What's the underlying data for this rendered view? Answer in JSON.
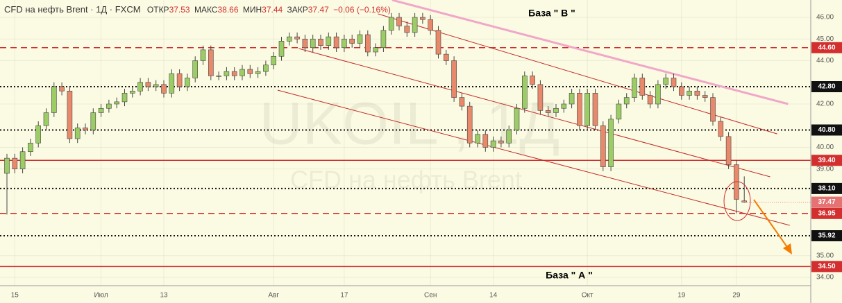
{
  "chart_data": {
    "type": "candlestick",
    "title": "CFD на нефть Brent · 1Д · FXCM",
    "header_labels": {
      "open": "ОТКР",
      "high": "МАКС",
      "low": "МИН",
      "close": "ЗАКР"
    },
    "change": "−0.06 (−0.16%)",
    "watermark": [
      "UKOIL , 1Д",
      "CFD на нефть Brent"
    ],
    "annotations": [
      "База  \" В \"",
      "База  \" А \""
    ],
    "up_color": "#9ccc65",
    "down_color": "#e8896b",
    "grid": true,
    "categories": [
      null,
      "15",
      null,
      null,
      null,
      null,
      null,
      null,
      null,
      null,
      null,
      null,
      "Июл",
      null,
      null,
      null,
      null,
      null,
      null,
      null,
      "13",
      null,
      null,
      null,
      null,
      null,
      null,
      null,
      null,
      null,
      null,
      null,
      null,
      null,
      "Авг",
      null,
      null,
      null,
      null,
      null,
      null,
      null,
      null,
      "17",
      null,
      null,
      null,
      null,
      null,
      null,
      null,
      null,
      null,
      null,
      "Сен",
      null,
      null,
      null,
      null,
      null,
      null,
      null,
      "14",
      null,
      null,
      null,
      null,
      null,
      null,
      null,
      null,
      null,
      null,
      null,
      "Окт",
      null,
      null,
      null,
      null,
      null,
      null,
      null,
      null,
      null,
      null,
      null,
      "19",
      null,
      null,
      null,
      null,
      null,
      null,
      "29",
      null
    ],
    "open": [
      38.8,
      39.5,
      39.0,
      39.8,
      40.2,
      41.0,
      41.6,
      42.8,
      42.6,
      40.4,
      40.9,
      40.8,
      41.6,
      41.8,
      42.0,
      42.1,
      42.5,
      42.6,
      43.0,
      42.8,
      42.9,
      42.5,
      43.4,
      42.8,
      43.2,
      44.0,
      44.5,
      43.3,
      43.3,
      43.5,
      43.3,
      43.6,
      43.4,
      43.5,
      43.8,
      44.2,
      44.9,
      45.1,
      45.0,
      44.6,
      45.0,
      44.7,
      45.1,
      44.6,
      45.0,
      44.8,
      45.2,
      44.4,
      44.6,
      45.4,
      46.0,
      45.6,
      45.3,
      46.0,
      45.9,
      45.4,
      44.3,
      44.0,
      42.3,
      41.9,
      40.2,
      40.6,
      40.0,
      40.3,
      40.2,
      40.8,
      41.8,
      43.3,
      42.9,
      41.7,
      41.6,
      41.8,
      42.0,
      42.5,
      41.0,
      42.5,
      41.0,
      39.1,
      41.3,
      42.0,
      42.3,
      43.2,
      42.4,
      42.0,
      42.9,
      43.2,
      42.8,
      42.4,
      42.6,
      42.4,
      42.3,
      41.2,
      40.5,
      39.2,
      37.53
    ],
    "high": [
      39.7,
      39.7,
      40.0,
      40.4,
      41.2,
      41.8,
      43.0,
      43.0,
      42.8,
      41.1,
      41.1,
      41.8,
      42.0,
      42.2,
      42.3,
      42.7,
      42.8,
      43.2,
      43.2,
      43.1,
      43.1,
      43.6,
      43.6,
      43.4,
      44.2,
      44.7,
      44.7,
      43.5,
      43.7,
      43.7,
      43.8,
      43.8,
      43.7,
      44.0,
      44.4,
      45.1,
      45.3,
      45.3,
      45.2,
      45.2,
      45.2,
      45.3,
      45.3,
      45.2,
      45.2,
      45.4,
      45.4,
      44.8,
      45.6,
      46.2,
      46.2,
      45.8,
      46.2,
      46.2,
      46.1,
      45.6,
      44.5,
      44.2,
      42.5,
      42.1,
      40.8,
      40.8,
      40.5,
      40.5,
      41.0,
      42.0,
      43.5,
      43.5,
      43.1,
      41.9,
      42.0,
      42.2,
      42.7,
      42.7,
      42.7,
      42.7,
      41.2,
      41.5,
      42.2,
      42.5,
      43.4,
      43.4,
      42.6,
      43.1,
      43.4,
      43.4,
      43.0,
      42.8,
      42.8,
      42.6,
      42.5,
      41.4,
      40.7,
      39.4,
      38.66
    ],
    "low": [
      36.9,
      38.8,
      38.8,
      39.6,
      40.0,
      40.8,
      41.4,
      42.4,
      40.2,
      40.2,
      40.6,
      40.6,
      41.4,
      41.6,
      41.8,
      41.9,
      42.3,
      42.4,
      42.6,
      42.6,
      42.3,
      42.3,
      42.6,
      42.6,
      43.0,
      43.8,
      43.1,
      43.1,
      43.1,
      43.1,
      43.1,
      43.2,
      43.2,
      43.3,
      43.6,
      44.0,
      44.7,
      44.8,
      44.4,
      44.4,
      44.5,
      44.5,
      44.4,
      44.4,
      44.6,
      44.6,
      44.2,
      44.2,
      44.4,
      45.2,
      45.4,
      45.1,
      45.1,
      45.7,
      45.2,
      44.1,
      43.8,
      42.1,
      41.7,
      40.0,
      40.0,
      39.8,
      39.8,
      40.0,
      40.0,
      40.6,
      41.6,
      42.7,
      41.5,
      41.4,
      41.4,
      41.6,
      41.8,
      40.8,
      40.8,
      40.8,
      38.9,
      38.9,
      41.1,
      41.8,
      42.1,
      42.2,
      41.8,
      41.8,
      42.7,
      42.6,
      42.2,
      42.2,
      42.2,
      42.1,
      41.0,
      40.3,
      39.0,
      36.95,
      37.44
    ],
    "close": [
      39.5,
      39.0,
      39.8,
      40.2,
      41.0,
      41.6,
      42.8,
      42.6,
      40.4,
      40.9,
      40.8,
      41.6,
      41.8,
      42.0,
      42.1,
      42.5,
      42.6,
      43.0,
      42.8,
      42.9,
      42.5,
      43.4,
      42.8,
      43.2,
      44.0,
      44.5,
      43.3,
      43.3,
      43.5,
      43.3,
      43.6,
      43.4,
      43.5,
      43.8,
      44.2,
      44.9,
      45.1,
      45.0,
      44.6,
      45.0,
      44.7,
      45.1,
      44.6,
      45.0,
      44.8,
      45.2,
      44.4,
      44.6,
      45.4,
      46.0,
      45.6,
      45.3,
      46.0,
      45.9,
      45.4,
      44.3,
      44.0,
      42.3,
      41.9,
      40.2,
      40.6,
      40.0,
      40.3,
      40.2,
      40.8,
      41.8,
      43.3,
      42.9,
      41.7,
      41.6,
      41.8,
      42.0,
      42.5,
      41.0,
      42.5,
      41.0,
      39.1,
      41.3,
      42.0,
      42.3,
      43.2,
      42.4,
      42.0,
      42.9,
      43.2,
      42.8,
      42.4,
      42.6,
      42.4,
      42.3,
      41.2,
      40.5,
      39.2,
      37.6,
      37.47
    ],
    "ylim": [
      33.6,
      46.8
    ],
    "yticks": [
      {
        "value": 46,
        "label": "46.00"
      },
      {
        "value": 45,
        "label": "45.00"
      },
      {
        "value": 44,
        "label": "44.00"
      },
      {
        "value": 42,
        "label": "42.00"
      },
      {
        "value": 40,
        "label": "40.00"
      },
      {
        "value": 39,
        "label": "39.00"
      },
      {
        "value": 35,
        "label": "35.00"
      },
      {
        "value": 34,
        "label": "34.00"
      }
    ],
    "levels": [
      {
        "value": 44.6,
        "label": "44.60",
        "color": "#d32f2f",
        "style": "dashed"
      },
      {
        "value": 42.8,
        "label": "42.80",
        "color": "#111111",
        "style": "dotted"
      },
      {
        "value": 40.8,
        "label": "40.80",
        "color": "#111111",
        "style": "dotted"
      },
      {
        "value": 39.4,
        "label": "39.40",
        "color": "#d32f2f",
        "style": "solid"
      },
      {
        "value": 38.1,
        "label": "38.10",
        "color": "#111111",
        "style": "dotted"
      },
      {
        "value": 36.95,
        "label": "36.95",
        "color": "#d32f2f",
        "style": "dashed"
      },
      {
        "value": 35.92,
        "label": "35.92",
        "color": "#111111",
        "style": "dotted"
      },
      {
        "value": 34.5,
        "label": "34.50",
        "color": "#d32f2f",
        "style": "solid"
      }
    ],
    "last_price": {
      "value": 37.47,
      "label": "37.47",
      "color": "#e57373"
    },
    "trendlines": [
      {
        "color": "#f1a7c8",
        "width": 3,
        "points": [
          [
            49.1,
            46.8
          ],
          [
            99.6,
            42.0
          ]
        ]
      },
      {
        "color": "#c62828",
        "width": 1,
        "points": [
          [
            47.3,
            46.16
          ],
          [
            98.2,
            40.62
          ]
        ]
      },
      {
        "color": "#c62828",
        "width": 1,
        "points": [
          [
            37.2,
            44.56
          ],
          [
            97.3,
            38.64
          ]
        ]
      },
      {
        "color": "#c62828",
        "width": 1,
        "points": [
          [
            34.5,
            42.64
          ],
          [
            99.8,
            36.4
          ]
        ]
      }
    ]
  }
}
